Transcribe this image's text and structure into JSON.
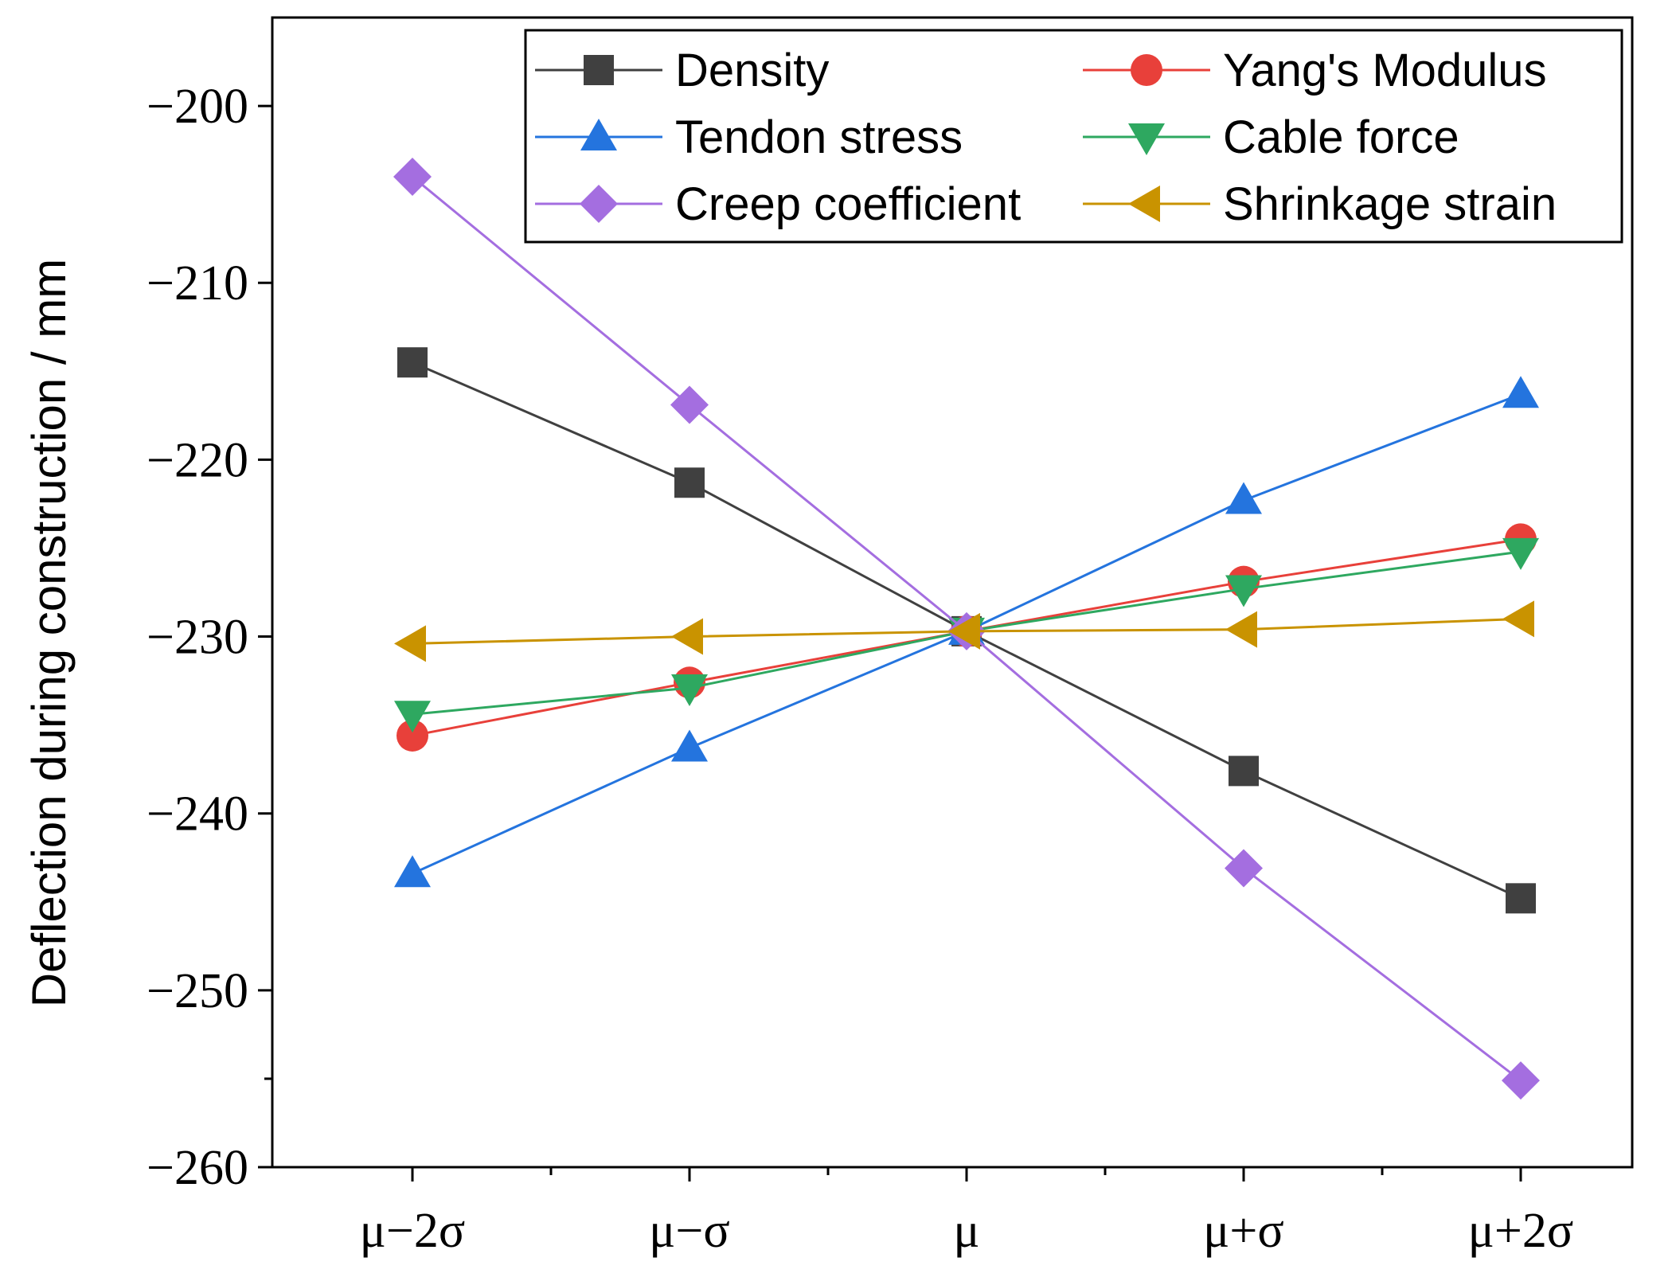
{
  "chart_data": {
    "type": "line",
    "title": "",
    "xlabel": "",
    "ylabel": "Deflection during construction / mm",
    "categories": [
      "μ−2σ",
      "μ−σ",
      "μ",
      "μ+σ",
      "μ+2σ"
    ],
    "ylim": [
      -260,
      -195
    ],
    "yticks": [
      -200,
      -210,
      -220,
      -230,
      -240,
      -250,
      -260
    ],
    "ytick_labels": [
      "−200",
      "−210",
      "−220",
      "−230",
      "−240",
      "−250",
      "−260"
    ],
    "grid": false,
    "legend_position": "top",
    "series": [
      {
        "name": "Density",
        "color": "#404040",
        "marker": "square",
        "values": [
          -214.5,
          -221.3,
          -229.7,
          -237.6,
          -244.8
        ]
      },
      {
        "name": "Yang's Modulus",
        "color": "#e8403a",
        "marker": "circle",
        "values": [
          -235.6,
          -232.6,
          -229.7,
          -226.9,
          -224.5
        ]
      },
      {
        "name": "Tendon stress",
        "color": "#2474de",
        "marker": "triangle-up",
        "values": [
          -243.4,
          -236.3,
          -229.7,
          -222.3,
          -216.3
        ]
      },
      {
        "name": "Cable force",
        "color": "#2ea860",
        "marker": "triangle-down",
        "values": [
          -234.4,
          -232.9,
          -229.7,
          -227.3,
          -225.2
        ]
      },
      {
        "name": "Creep coefficient",
        "color": "#a46ee0",
        "marker": "diamond",
        "values": [
          -204.0,
          -216.9,
          -229.7,
          -243.1,
          -255.1
        ]
      },
      {
        "name": "Shrinkage strain",
        "color": "#c99300",
        "marker": "triangle-left",
        "values": [
          -230.4,
          -230.0,
          -229.7,
          -229.6,
          -229.0
        ]
      }
    ]
  }
}
